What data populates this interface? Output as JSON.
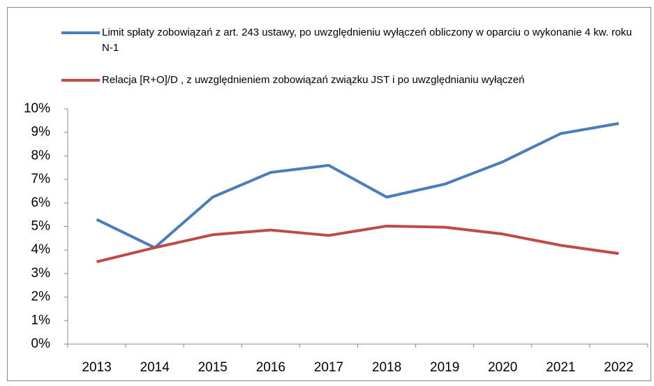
{
  "chart_data": {
    "type": "line",
    "categories": [
      "2013",
      "2014",
      "2015",
      "2016",
      "2017",
      "2018",
      "2019",
      "2020",
      "2021",
      "2022"
    ],
    "series": [
      {
        "name": "Limit spłaty zobowiązań z art. 243 ustawy, po uwzględnieniu wyłączeń obliczony w oparciu o wykonanie 4 kw. roku N-1",
        "color": "#4a7ebb",
        "values": [
          5.3,
          4.1,
          6.25,
          7.3,
          7.6,
          6.25,
          6.8,
          7.75,
          8.95,
          9.38
        ]
      },
      {
        "name": "Relacja [R+O]/D , z uwzględnieniem zobowiązań związku JST i po uwzględnianiu wyłączeń",
        "color": "#be4b48",
        "values": [
          3.5,
          4.1,
          4.65,
          4.85,
          4.62,
          5.02,
          4.97,
          4.68,
          4.2,
          3.85
        ]
      }
    ],
    "ylim": [
      0,
      10
    ],
    "yticks": [
      {
        "value": 0,
        "label": "0%"
      },
      {
        "value": 1,
        "label": "1%"
      },
      {
        "value": 2,
        "label": "2%"
      },
      {
        "value": 3,
        "label": "3%"
      },
      {
        "value": 4,
        "label": "4%"
      },
      {
        "value": 5,
        "label": "5%"
      },
      {
        "value": 6,
        "label": "6%"
      },
      {
        "value": 7,
        "label": "7%"
      },
      {
        "value": 8,
        "label": "8%"
      },
      {
        "value": 9,
        "label": "9%"
      },
      {
        "value": 10,
        "label": "10%"
      }
    ],
    "grid": false
  }
}
